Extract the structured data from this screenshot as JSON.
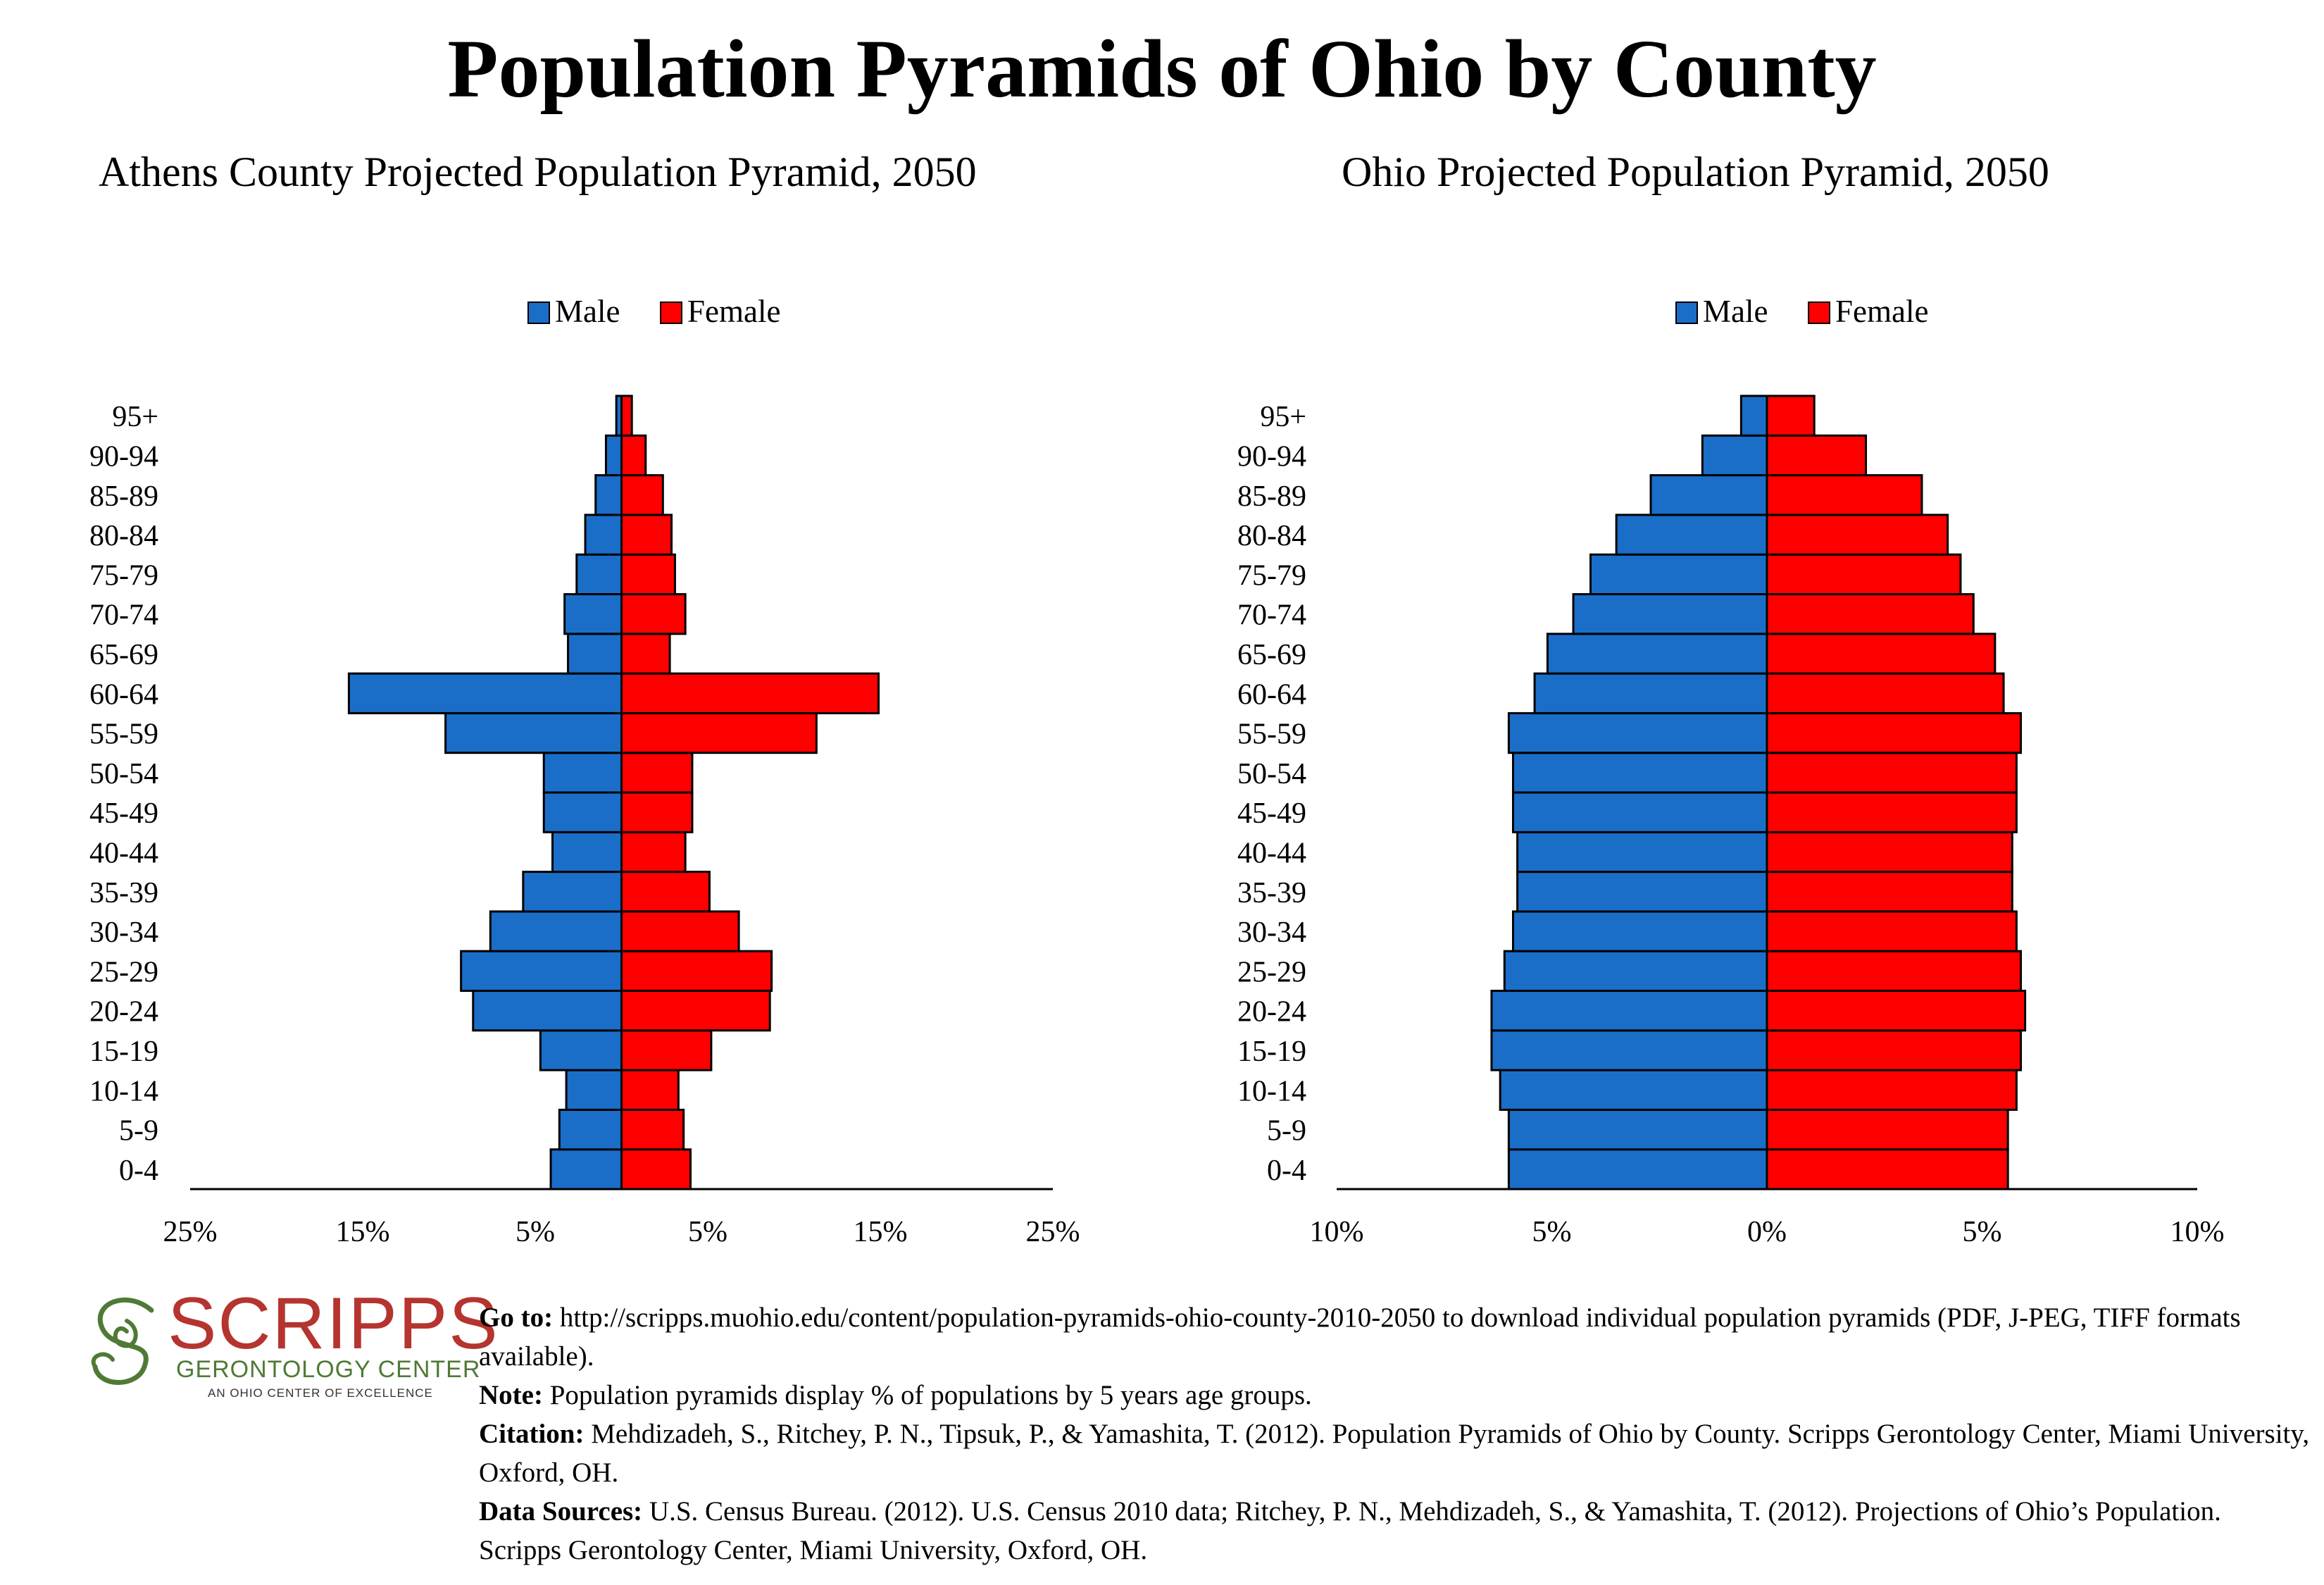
{
  "page": {
    "title": "Population Pyramids of Ohio by County"
  },
  "legend": {
    "male": "Male",
    "female": "Female",
    "male_color": "#1a6ec8",
    "female_color": "#ff0000"
  },
  "chart_data": [
    {
      "type": "bar",
      "subtype": "population-pyramid",
      "title": "Athens County Projected Population Pyramid, 2050",
      "categories": [
        "0-4",
        "5-9",
        "10-14",
        "15-19",
        "20-24",
        "25-29",
        "30-34",
        "35-39",
        "40-44",
        "45-49",
        "50-54",
        "55-59",
        "60-64",
        "65-69",
        "70-74",
        "75-79",
        "80-84",
        "85-89",
        "90-94",
        "95+"
      ],
      "series": [
        {
          "name": "Male",
          "values": [
            4.1,
            3.6,
            3.2,
            4.7,
            8.6,
            9.3,
            7.6,
            5.7,
            4.0,
            4.5,
            4.5,
            10.2,
            15.8,
            3.1,
            3.3,
            2.6,
            2.1,
            1.5,
            0.9,
            0.3
          ]
        },
        {
          "name": "Female",
          "values": [
            4.0,
            3.6,
            3.3,
            5.2,
            8.6,
            8.7,
            6.8,
            5.1,
            3.7,
            4.1,
            4.1,
            11.3,
            14.9,
            2.8,
            3.7,
            3.1,
            2.9,
            2.4,
            1.4,
            0.6
          ]
        }
      ],
      "xticks": [
        "25%",
        "15%",
        "5%",
        "5%",
        "15%",
        "25%"
      ],
      "xlim": [
        -25,
        25
      ],
      "legend_position": "top-center"
    },
    {
      "type": "bar",
      "subtype": "population-pyramid",
      "title": "Ohio Projected Population Pyramid, 2050",
      "categories": [
        "0-4",
        "5-9",
        "10-14",
        "15-19",
        "20-24",
        "25-29",
        "30-34",
        "35-39",
        "40-44",
        "45-49",
        "50-54",
        "55-59",
        "60-64",
        "65-69",
        "70-74",
        "75-79",
        "80-84",
        "85-89",
        "90-94",
        "95+"
      ],
      "series": [
        {
          "name": "Male",
          "values": [
            6.0,
            6.0,
            6.2,
            6.4,
            6.4,
            6.1,
            5.9,
            5.8,
            5.8,
            5.9,
            5.9,
            6.0,
            5.4,
            5.1,
            4.5,
            4.1,
            3.5,
            2.7,
            1.5,
            0.6
          ]
        },
        {
          "name": "Female",
          "values": [
            5.6,
            5.6,
            5.8,
            5.9,
            6.0,
            5.9,
            5.8,
            5.7,
            5.7,
            5.8,
            5.8,
            5.9,
            5.5,
            5.3,
            4.8,
            4.5,
            4.2,
            3.6,
            2.3,
            1.1
          ]
        }
      ],
      "xticks": [
        "10%",
        "5%",
        "0%",
        "5%",
        "10%"
      ],
      "xlim": [
        -10,
        10
      ],
      "legend_position": "top-center"
    }
  ],
  "logo": {
    "name": "SCRIPPS",
    "line1": "GERONTOLOGY CENTER",
    "line2": "AN OHIO CENTER OF EXCELLENCE"
  },
  "notes": {
    "goto_label": "Go to:",
    "goto_text": "http://scripps.muohio.edu/content/population-pyramids-ohio-county-2010-2050 to download individual population pyramids (PDF, J-PEG, TIFF formats available).",
    "note_label": "Note:",
    "note_text": "Population pyramids display % of populations by 5 years age groups.",
    "citation_label": "Citation:",
    "citation_text": "Mehdizadeh, S., Ritchey, P. N., Tipsuk, P., & Yamashita, T. (2012). Population Pyramids of Ohio by County. Scripps Gerontology Center, Miami University, Oxford, OH.",
    "sources_label": "Data Sources:",
    "sources_text": "U.S. Census Bureau. (2012). U.S. Census 2010 data; Ritchey, P. N., Mehdizadeh, S., & Yamashita, T. (2012). Projections of Ohio’s Population. Scripps Gerontology Center, Miami University, Oxford, OH."
  }
}
